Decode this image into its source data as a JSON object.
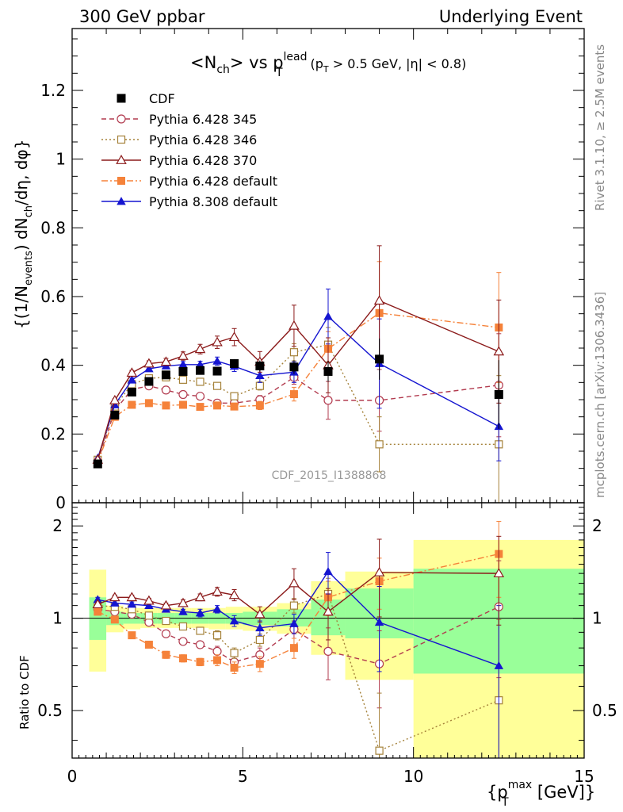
{
  "header": {
    "left": "300 GeV ppbar",
    "right": "Underlying Event",
    "watermark": "CDF_2015_I1388868",
    "rivet": "Rivet 3.1.10, ≥ 2.5M events",
    "mcplots": "mcplots.cern.ch [arXiv:1306.3436]"
  },
  "chart_data": {
    "type": "line",
    "title": {
      "main": "<N",
      "main_sub": "ch",
      "middle": "> vs p",
      "p_sup": "lead",
      "p_sub": "T",
      "cut_a": "(p",
      "cut_a_sub": "T",
      "cut_b": " > 0.5 GeV, |η| < 0.8)"
    },
    "ylabel": {
      "a": "{(1/N",
      "a_sub": "events",
      "b": ") dN",
      "b_sub": "ch",
      "c": "/dη, dφ}"
    },
    "xlabel": {
      "a": "{p",
      "sup": "max",
      "sub": "T",
      "b": " [GeV]}"
    },
    "ratio_ylabel": "Ratio to CDF",
    "xlim": [
      0,
      15
    ],
    "ylim": [
      0,
      1.38
    ],
    "ratio_ylim": [
      0.35,
      2.38
    ],
    "ratio_log": true,
    "x_ticks": [
      "0",
      "5",
      "10",
      "15"
    ],
    "y_ticks": [
      "0",
      "0.2",
      "0.4",
      "0.6",
      "0.8",
      "1",
      "1.2"
    ],
    "ratio_ticks": [
      "0.5",
      "1",
      "2"
    ],
    "ratio_bands": [
      {
        "x0": 0.5,
        "x1": 1.0,
        "y0_outer": 0.67,
        "y1_outer": 1.44,
        "y0_inner": 0.85,
        "y1_inner": 1.17
      },
      {
        "x0": 1.0,
        "x1": 1.5,
        "y0_outer": 0.9,
        "y1_outer": 1.1,
        "y0_inner": 0.95,
        "y1_inner": 1.05
      },
      {
        "x0": 1.5,
        "x1": 2.0,
        "y0_outer": 0.92,
        "y1_outer": 1.08,
        "y0_inner": 0.96,
        "y1_inner": 1.04
      },
      {
        "x0": 2.0,
        "x1": 2.5,
        "y0_outer": 0.93,
        "y1_outer": 1.08,
        "y0_inner": 0.96,
        "y1_inner": 1.04
      },
      {
        "x0": 2.5,
        "x1": 3.0,
        "y0_outer": 0.93,
        "y1_outer": 1.08,
        "y0_inner": 0.96,
        "y1_inner": 1.04
      },
      {
        "x0": 3.0,
        "x1": 3.5,
        "y0_outer": 0.93,
        "y1_outer": 1.08,
        "y0_inner": 0.96,
        "y1_inner": 1.04
      },
      {
        "x0": 3.5,
        "x1": 4.0,
        "y0_outer": 0.93,
        "y1_outer": 1.08,
        "y0_inner": 0.96,
        "y1_inner": 1.04
      },
      {
        "x0": 4.0,
        "x1": 4.5,
        "y0_outer": 0.92,
        "y1_outer": 1.08,
        "y0_inner": 0.96,
        "y1_inner": 1.04
      },
      {
        "x0": 4.5,
        "x1": 5.0,
        "y0_outer": 0.92,
        "y1_outer": 1.09,
        "y0_inner": 0.96,
        "y1_inner": 1.04
      },
      {
        "x0": 5.0,
        "x1": 6.0,
        "y0_outer": 0.91,
        "y1_outer": 1.09,
        "y0_inner": 0.95,
        "y1_inner": 1.05
      },
      {
        "x0": 6.0,
        "x1": 7.0,
        "y0_outer": 0.89,
        "y1_outer": 1.12,
        "y0_inner": 0.94,
        "y1_inner": 1.07
      },
      {
        "x0": 7.0,
        "x1": 7.5,
        "y0_outer": 0.76,
        "y1_outer": 1.32,
        "y0_inner": 0.88,
        "y1_inner": 1.15
      },
      {
        "x0": 7.5,
        "x1": 8.0,
        "y0_outer": 0.76,
        "y1_outer": 1.32,
        "y0_inner": 0.88,
        "y1_inner": 1.15
      },
      {
        "x0": 8.0,
        "x1": 10.0,
        "y0_outer": 0.63,
        "y1_outer": 1.42,
        "y0_inner": 0.86,
        "y1_inner": 1.25
      },
      {
        "x0": 10.0,
        "x1": 15.0,
        "y0_outer": 0.35,
        "y1_outer": 1.8,
        "y0_inner": 0.66,
        "y1_inner": 1.45
      }
    ],
    "series": [
      {
        "name": "CDF",
        "style": "data",
        "color": "#000000",
        "marker": "square-filled",
        "dash": "",
        "x": [
          0.75,
          1.25,
          1.75,
          2.25,
          2.75,
          3.25,
          3.75,
          4.25,
          4.75,
          5.5,
          6.5,
          7.5,
          9.0,
          12.5
        ],
        "y": [
          0.113,
          0.255,
          0.322,
          0.353,
          0.372,
          0.382,
          0.385,
          0.383,
          0.405,
          0.398,
          0.395,
          0.382,
          0.418,
          0.315
        ],
        "err": [
          0.006,
          0.008,
          0.009,
          0.01,
          0.01,
          0.011,
          0.012,
          0.012,
          0.013,
          0.016,
          0.02,
          0.03,
          0.06,
          0.1
        ],
        "ratio": []
      },
      {
        "name": "Pythia 6.428 345",
        "style": "mc",
        "color": "#b23b4f",
        "marker": "circle-open",
        "dash": "6,4",
        "x": [
          0.75,
          1.25,
          1.75,
          2.25,
          2.75,
          3.25,
          3.75,
          4.25,
          4.75,
          5.5,
          6.5,
          7.5,
          9.0,
          12.5
        ],
        "y": [
          0.12,
          0.268,
          0.33,
          0.34,
          0.328,
          0.315,
          0.31,
          0.29,
          0.29,
          0.3,
          0.365,
          0.298,
          0.298,
          0.342
        ],
        "err": [
          0.002,
          0.004,
          0.005,
          0.006,
          0.006,
          0.007,
          0.008,
          0.009,
          0.01,
          0.012,
          0.02,
          0.055,
          0.09,
          0.15
        ],
        "ratio": [
          1.07,
          1.05,
          1.03,
          0.97,
          0.89,
          0.84,
          0.82,
          0.78,
          0.72,
          0.76,
          0.92,
          0.78,
          0.71,
          1.09
        ],
        "ratio_err": [
          0.02,
          0.02,
          0.02,
          0.02,
          0.02,
          0.02,
          0.02,
          0.03,
          0.03,
          0.04,
          0.06,
          0.15,
          0.2,
          0.45
        ]
      },
      {
        "name": "Pythia 6.428 346",
        "style": "mc",
        "color": "#a5823a",
        "marker": "square-open",
        "dash": "2,3",
        "x": [
          0.75,
          1.25,
          1.75,
          2.25,
          2.75,
          3.25,
          3.75,
          4.25,
          4.75,
          5.5,
          6.5,
          7.5,
          9.0,
          12.5
        ],
        "y": [
          0.125,
          0.28,
          0.345,
          0.362,
          0.365,
          0.358,
          0.352,
          0.34,
          0.31,
          0.34,
          0.438,
          0.46,
          0.17,
          0.17
        ],
        "err": [
          0.002,
          0.004,
          0.005,
          0.006,
          0.006,
          0.007,
          0.008,
          0.009,
          0.01,
          0.012,
          0.025,
          0.05,
          0.08,
          0.2
        ],
        "ratio": [
          1.1,
          1.09,
          1.07,
          1.02,
          0.98,
          0.94,
          0.91,
          0.88,
          0.77,
          0.85,
          1.1,
          1.2,
          0.37,
          0.54
        ],
        "ratio_err": [
          0.02,
          0.02,
          0.02,
          0.02,
          0.02,
          0.02,
          0.02,
          0.03,
          0.03,
          0.04,
          0.06,
          0.15,
          0.2,
          0.45
        ]
      },
      {
        "name": "Pythia 6.428 370",
        "style": "mc",
        "color": "#8b1a1a",
        "marker": "triangle-open",
        "dash": "",
        "x": [
          0.75,
          1.25,
          1.75,
          2.25,
          2.75,
          3.25,
          3.75,
          4.25,
          4.75,
          5.5,
          6.5,
          7.5,
          9.0,
          12.5
        ],
        "y": [
          0.125,
          0.298,
          0.378,
          0.405,
          0.41,
          0.427,
          0.447,
          0.467,
          0.482,
          0.41,
          0.515,
          0.4,
          0.588,
          0.44
        ],
        "err": [
          0.002,
          0.005,
          0.007,
          0.008,
          0.01,
          0.012,
          0.014,
          0.018,
          0.025,
          0.03,
          0.06,
          0.08,
          0.16,
          0.15
        ],
        "ratio": [
          1.11,
          1.17,
          1.17,
          1.14,
          1.1,
          1.12,
          1.17,
          1.22,
          1.19,
          1.03,
          1.3,
          1.05,
          1.41,
          1.4
        ],
        "ratio_err": [
          0.02,
          0.02,
          0.02,
          0.02,
          0.02,
          0.03,
          0.03,
          0.04,
          0.05,
          0.06,
          0.15,
          0.2,
          0.4,
          0.45
        ]
      },
      {
        "name": "Pythia 6.428 default",
        "style": "mc",
        "color": "#f5823a",
        "marker": "square-filled",
        "dash": "8,3,2,3",
        "x": [
          0.75,
          1.25,
          1.75,
          2.25,
          2.75,
          3.25,
          3.75,
          4.25,
          4.75,
          5.5,
          6.5,
          7.5,
          9.0,
          12.5
        ],
        "y": [
          0.118,
          0.25,
          0.285,
          0.29,
          0.283,
          0.285,
          0.279,
          0.283,
          0.28,
          0.283,
          0.316,
          0.448,
          0.552,
          0.51
        ],
        "err": [
          0.002,
          0.003,
          0.004,
          0.005,
          0.005,
          0.006,
          0.007,
          0.008,
          0.01,
          0.012,
          0.02,
          0.05,
          0.15,
          0.16
        ],
        "ratio": [
          1.05,
          0.99,
          0.88,
          0.82,
          0.76,
          0.74,
          0.72,
          0.73,
          0.69,
          0.71,
          0.8,
          1.17,
          1.32,
          1.62
        ],
        "ratio_err": [
          0.02,
          0.02,
          0.02,
          0.02,
          0.02,
          0.02,
          0.02,
          0.03,
          0.03,
          0.04,
          0.06,
          0.15,
          0.25,
          0.45
        ]
      },
      {
        "name": "Pythia 8.308 default",
        "style": "mc",
        "color": "#1515d0",
        "marker": "triangle-filled",
        "dash": "",
        "x": [
          0.75,
          1.25,
          1.75,
          2.25,
          2.75,
          3.25,
          3.75,
          4.25,
          4.75,
          5.5,
          6.5,
          7.5,
          9.0,
          12.5
        ],
        "y": [
          0.13,
          0.285,
          0.357,
          0.39,
          0.398,
          0.402,
          0.402,
          0.412,
          0.397,
          0.37,
          0.38,
          0.542,
          0.405,
          0.222
        ],
        "err": [
          0.002,
          0.004,
          0.006,
          0.007,
          0.008,
          0.009,
          0.01,
          0.012,
          0.015,
          0.02,
          0.03,
          0.08,
          0.13,
          0.1
        ],
        "ratio": [
          1.15,
          1.12,
          1.11,
          1.1,
          1.07,
          1.05,
          1.04,
          1.07,
          0.98,
          0.93,
          0.96,
          1.42,
          0.97,
          0.7
        ],
        "ratio_err": [
          0.02,
          0.02,
          0.02,
          0.02,
          0.02,
          0.02,
          0.03,
          0.03,
          0.04,
          0.05,
          0.07,
          0.22,
          0.3,
          0.4
        ]
      }
    ]
  }
}
